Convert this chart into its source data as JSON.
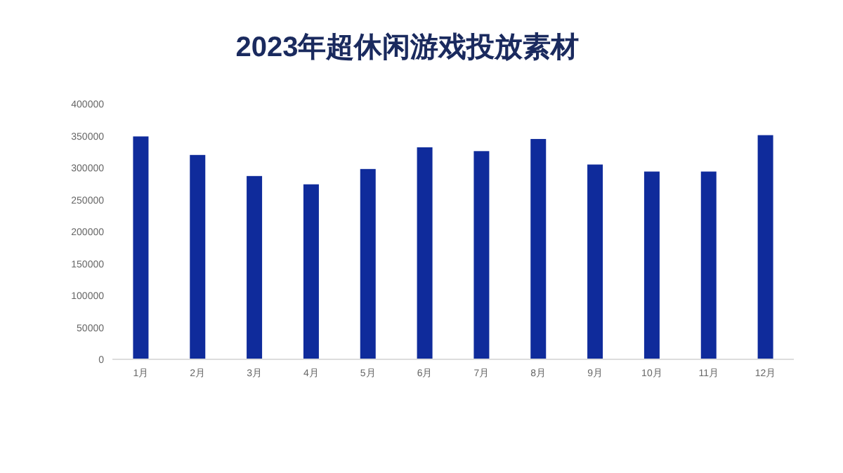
{
  "chart_data": {
    "type": "bar",
    "title": "2023年超休闲游戏投放素材",
    "categories": [
      "1月",
      "2月",
      "3月",
      "4月",
      "5月",
      "6月",
      "7月",
      "8月",
      "9月",
      "10月",
      "11月",
      "12月"
    ],
    "values": [
      349000,
      320000,
      287000,
      274000,
      298000,
      332000,
      326000,
      345000,
      305000,
      294000,
      294000,
      351000
    ],
    "color": "#0f2b9b",
    "ylim": [
      0,
      400000
    ],
    "yticks": [
      0,
      50000,
      100000,
      150000,
      200000,
      250000,
      300000,
      350000,
      400000
    ],
    "grid": false
  }
}
